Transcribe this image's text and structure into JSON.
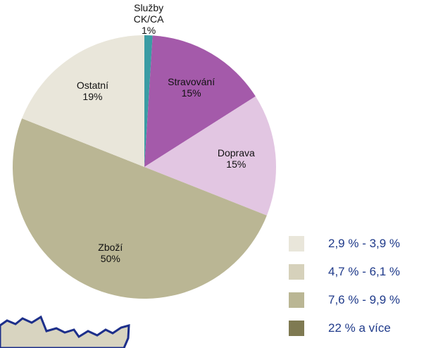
{
  "chart_data": {
    "type": "pie",
    "categories": [
      "Služby CK/CA",
      "Stravování",
      "Doprava",
      "Zboží",
      "Ostatní"
    ],
    "values": [
      1,
      15,
      15,
      50,
      19
    ],
    "value_labels": [
      "1%",
      "15%",
      "15%",
      "50%",
      "19%"
    ],
    "colors": [
      "#3a9ca4",
      "#a45aaa",
      "#e2c6e2",
      "#bab694",
      "#e9e6da"
    ]
  },
  "map_legend": {
    "items": [
      {
        "label": "2,9 % - 3,9 %",
        "color": "#e9e6da"
      },
      {
        "label": "4,7 % - 6,1 %",
        "color": "#d6d1bb"
      },
      {
        "label": "7,6 % - 9,9 %",
        "color": "#bab694"
      },
      {
        "label": "22 % a více",
        "color": "#7f7a52"
      }
    ]
  }
}
